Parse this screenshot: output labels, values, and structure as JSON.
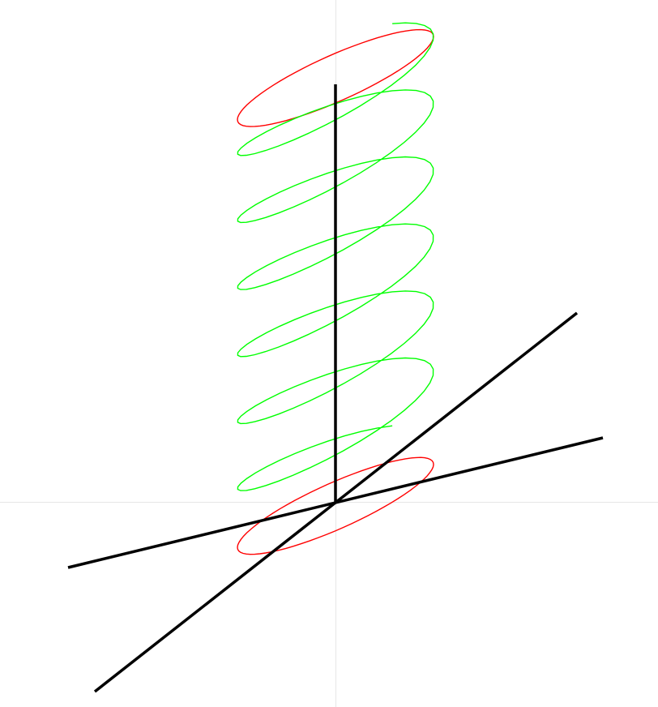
{
  "scene": {
    "description_colors": {
      "background": "#ffffff",
      "guide": "#e6e6e6",
      "axis": "#000000",
      "end_rings": "#ff0000",
      "helix": "#00ff00"
    },
    "helix": {
      "turns": 6,
      "samples_per_turn": 36
    },
    "end_circles": {
      "count": 2,
      "positions": [
        "bottom",
        "top"
      ]
    },
    "axes": [
      "x-axis",
      "y-axis",
      "z-axis"
    ]
  }
}
